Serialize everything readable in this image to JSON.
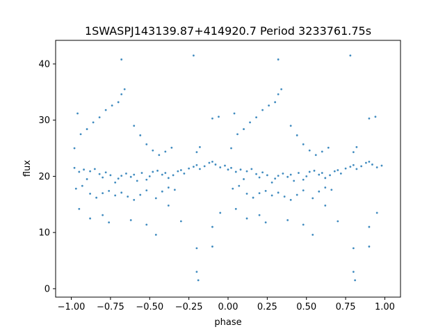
{
  "chart_data": {
    "type": "scatter",
    "title": "1SWASPJ143139.87+414920.7 Period 3233761.75s",
    "xlabel": "phase",
    "ylabel": "flux",
    "xlim": [
      -1.1,
      1.1
    ],
    "ylim": [
      -1.5,
      44.2
    ],
    "x_ticks": [
      -1.0,
      -0.75,
      -0.5,
      -0.25,
      0.0,
      0.25,
      0.5,
      0.75,
      1.0
    ],
    "x_tick_labels": [
      "−1.00",
      "−0.75",
      "−0.50",
      "−0.25",
      "0.00",
      "0.25",
      "0.50",
      "0.75",
      "1.00"
    ],
    "y_ticks": [
      0,
      10,
      20,
      30,
      40
    ],
    "y_tick_labels": [
      "0",
      "10",
      "20",
      "30",
      "40"
    ],
    "grid": false,
    "legend": "none",
    "marker_color": "#1f77b4",
    "series": [
      {
        "x": [
          -0.98,
          -0.95,
          -0.92,
          -0.9,
          -0.88,
          -0.85,
          -0.82,
          -0.8,
          -0.78,
          -0.75,
          -0.72,
          -0.7,
          -0.68,
          -0.65,
          -0.62,
          -0.6,
          -0.58,
          -0.55,
          -0.52,
          -0.5,
          -0.48,
          -0.45,
          -0.42,
          -0.4,
          -0.38,
          -0.35,
          -0.32,
          -0.3,
          -0.28,
          -0.25,
          -0.22,
          -0.2,
          -0.18,
          -0.15,
          -0.12,
          -0.1,
          -0.08,
          -0.05,
          -0.02,
          0.0,
          0.02,
          0.05,
          0.08,
          0.1,
          0.12,
          0.15,
          0.18,
          0.2,
          0.22,
          0.25,
          0.28,
          0.3,
          0.32,
          0.35,
          0.38,
          0.4,
          0.42,
          0.45,
          0.48,
          0.5,
          0.52,
          0.55,
          0.58,
          0.6,
          0.62,
          0.65,
          0.68,
          0.7,
          0.72,
          0.75,
          0.78,
          0.8,
          0.82,
          0.85,
          0.88,
          0.9,
          0.92,
          0.95,
          0.98
        ],
        "y": [
          21.5,
          20.8,
          21.2,
          19.5,
          20.9,
          21.3,
          20.4,
          19.8,
          20.7,
          20.2,
          18.9,
          19.6,
          20.1,
          20.5,
          19.9,
          20.3,
          19.2,
          20.6,
          19.4,
          20.0,
          20.8,
          21.0,
          20.3,
          20.6,
          19.7,
          20.2,
          20.9,
          21.1,
          20.5,
          21.4,
          21.7,
          22.0,
          21.3,
          21.8,
          22.4,
          22.6,
          22.1,
          21.6,
          21.9,
          21.2,
          21.5,
          20.8,
          21.2,
          19.5,
          20.9,
          21.3,
          20.4,
          19.8,
          20.7,
          20.2,
          18.9,
          19.6,
          20.1,
          20.5,
          19.9,
          20.3,
          19.2,
          20.6,
          19.4,
          20.0,
          20.8,
          21.0,
          20.3,
          20.6,
          19.7,
          20.2,
          20.9,
          21.1,
          20.5,
          21.4,
          21.7,
          22.0,
          21.3,
          21.8,
          22.4,
          22.6,
          22.1,
          21.6,
          21.9
        ]
      },
      {
        "x": [
          -0.98,
          -0.96,
          -0.94,
          -0.9,
          -0.86,
          -0.82,
          -0.78,
          -0.74,
          -0.7,
          -0.68,
          -0.66,
          -0.6,
          -0.56,
          -0.52,
          -0.48,
          -0.44,
          -0.4,
          -0.36,
          -0.2,
          -0.18,
          -0.1,
          -0.06,
          0.02,
          0.04,
          0.06,
          0.1,
          0.14,
          0.18,
          0.22,
          0.26,
          0.3,
          0.32,
          0.34,
          0.4,
          0.44,
          0.48,
          0.52,
          0.56,
          0.6,
          0.64,
          0.8,
          0.82,
          0.9,
          0.94
        ],
        "y": [
          25.0,
          31.2,
          27.5,
          28.4,
          29.6,
          30.5,
          31.8,
          32.6,
          33.2,
          34.6,
          35.5,
          29.0,
          27.3,
          25.7,
          24.6,
          23.8,
          24.4,
          25.1,
          24.3,
          25.2,
          30.3,
          30.6,
          25.0,
          31.2,
          27.5,
          28.4,
          29.6,
          30.5,
          31.8,
          32.6,
          33.2,
          34.6,
          35.5,
          29.0,
          27.3,
          25.7,
          24.6,
          23.8,
          24.4,
          25.1,
          24.3,
          25.2,
          30.3,
          30.6
        ]
      },
      {
        "x": [
          -0.97,
          -0.93,
          -0.88,
          -0.84,
          -0.8,
          -0.76,
          -0.72,
          -0.68,
          -0.64,
          -0.6,
          -0.56,
          -0.52,
          -0.46,
          -0.42,
          -0.38,
          -0.34,
          0.03,
          0.07,
          0.12,
          0.16,
          0.2,
          0.24,
          0.28,
          0.32,
          0.36,
          0.4,
          0.44,
          0.48,
          0.54,
          0.58,
          0.62,
          0.66
        ],
        "y": [
          17.8,
          18.3,
          16.9,
          16.2,
          17.0,
          17.4,
          16.6,
          17.1,
          16.4,
          15.8,
          16.7,
          17.5,
          16.1,
          17.3,
          18.0,
          17.6,
          17.8,
          18.3,
          16.9,
          16.2,
          17.0,
          17.4,
          16.6,
          17.1,
          16.4,
          15.8,
          16.7,
          17.5,
          16.1,
          17.3,
          18.0,
          17.6
        ]
      },
      {
        "x": [
          -0.95,
          -0.88,
          -0.8,
          -0.76,
          -0.68,
          -0.62,
          -0.52,
          -0.46,
          -0.38,
          -0.3,
          -0.22,
          -0.2,
          -0.2,
          -0.19,
          -0.1,
          -0.1,
          -0.05,
          0.05,
          0.12,
          0.2,
          0.24,
          0.32,
          0.38,
          0.48,
          0.54,
          0.62,
          0.7,
          0.78,
          0.8,
          0.8,
          0.81,
          0.9,
          0.9,
          0.95
        ],
        "y": [
          14.2,
          12.5,
          13.1,
          11.8,
          40.8,
          12.2,
          11.4,
          9.6,
          14.8,
          12.0,
          41.5,
          7.2,
          3.0,
          1.5,
          7.5,
          11.0,
          13.5,
          14.2,
          12.5,
          13.1,
          11.8,
          40.8,
          12.2,
          11.4,
          9.6,
          14.8,
          12.0,
          41.5,
          7.2,
          3.0,
          1.5,
          7.5,
          11.0,
          13.5
        ]
      }
    ]
  }
}
